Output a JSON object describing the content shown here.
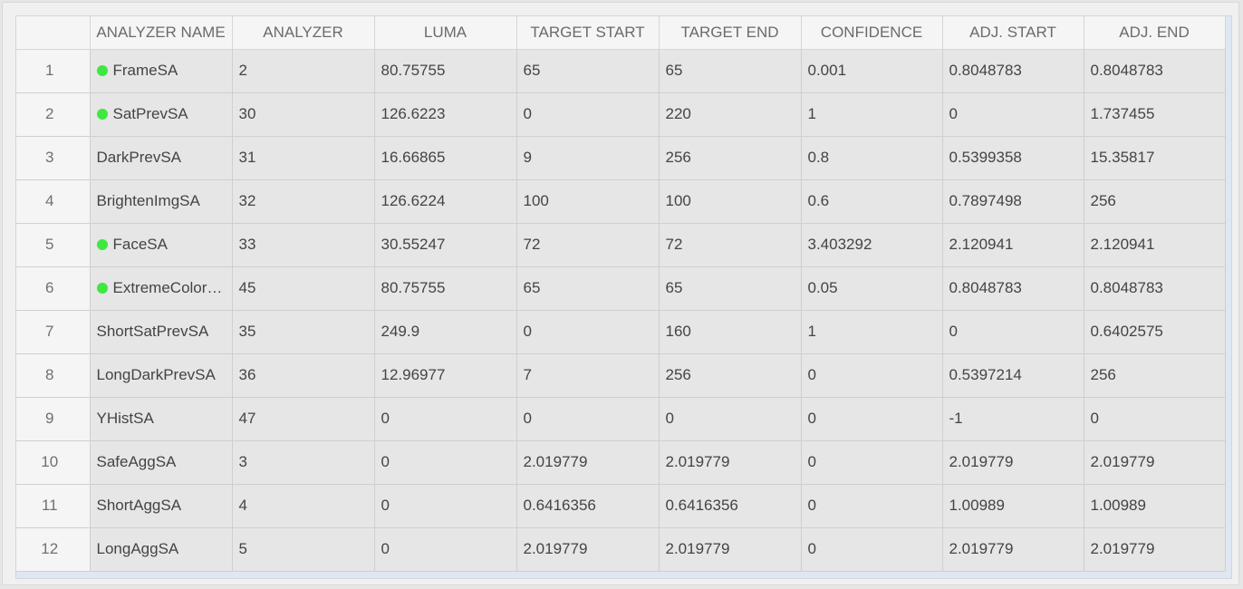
{
  "columns": [
    {
      "key": "rownum",
      "label": ""
    },
    {
      "key": "analyzer_name",
      "label": "ANALYZER NAME"
    },
    {
      "key": "analyzer",
      "label": "ANALYZER"
    },
    {
      "key": "luma",
      "label": "LUMA"
    },
    {
      "key": "target_start",
      "label": "TARGET START"
    },
    {
      "key": "target_end",
      "label": "TARGET END"
    },
    {
      "key": "confidence",
      "label": "CONFIDENCE"
    },
    {
      "key": "adj_start",
      "label": "ADJ. START"
    },
    {
      "key": "adj_end",
      "label": "ADJ. END"
    }
  ],
  "status_color": "#3ee83e",
  "rows": [
    {
      "rownum": "1",
      "active": true,
      "analyzer_name": "FrameSA",
      "analyzer": "2",
      "luma": "80.75755",
      "target_start": "65",
      "target_end": "65",
      "confidence": "0.001",
      "adj_start": "0.8048783",
      "adj_end": "0.8048783"
    },
    {
      "rownum": "2",
      "active": true,
      "analyzer_name": "SatPrevSA",
      "analyzer": "30",
      "luma": "126.6223",
      "target_start": "0",
      "target_end": "220",
      "confidence": "1",
      "adj_start": "0",
      "adj_end": "1.737455"
    },
    {
      "rownum": "3",
      "active": false,
      "analyzer_name": "DarkPrevSA",
      "analyzer": "31",
      "luma": "16.66865",
      "target_start": "9",
      "target_end": "256",
      "confidence": "0.8",
      "adj_start": "0.5399358",
      "adj_end": "15.35817"
    },
    {
      "rownum": "4",
      "active": false,
      "analyzer_name": "BrightenImgSA",
      "analyzer": "32",
      "luma": "126.6224",
      "target_start": "100",
      "target_end": "100",
      "confidence": "0.6",
      "adj_start": "0.7897498",
      "adj_end": "256"
    },
    {
      "rownum": "5",
      "active": true,
      "analyzer_name": "FaceSA",
      "analyzer": "33",
      "luma": "30.55247",
      "target_start": "72",
      "target_end": "72",
      "confidence": "3.403292",
      "adj_start": "2.120941",
      "adj_end": "2.120941"
    },
    {
      "rownum": "6",
      "active": true,
      "analyzer_name": "ExtremeColor…",
      "analyzer": "45",
      "luma": "80.75755",
      "target_start": "65",
      "target_end": "65",
      "confidence": "0.05",
      "adj_start": "0.8048783",
      "adj_end": "0.8048783"
    },
    {
      "rownum": "7",
      "active": false,
      "analyzer_name": "ShortSatPrevSA",
      "analyzer": "35",
      "luma": "249.9",
      "target_start": "0",
      "target_end": "160",
      "confidence": "1",
      "adj_start": "0",
      "adj_end": "0.6402575"
    },
    {
      "rownum": "8",
      "active": false,
      "analyzer_name": "LongDarkPrevSA",
      "analyzer": "36",
      "luma": "12.96977",
      "target_start": "7",
      "target_end": "256",
      "confidence": "0",
      "adj_start": "0.5397214",
      "adj_end": "256"
    },
    {
      "rownum": "9",
      "active": false,
      "analyzer_name": "YHistSA",
      "analyzer": "47",
      "luma": "0",
      "target_start": "0",
      "target_end": "0",
      "confidence": "0",
      "adj_start": "-1",
      "adj_end": "0"
    },
    {
      "rownum": "10",
      "active": false,
      "analyzer_name": "SafeAggSA",
      "analyzer": "3",
      "luma": "0",
      "target_start": "2.019779",
      "target_end": "2.019779",
      "confidence": "0",
      "adj_start": "2.019779",
      "adj_end": "2.019779"
    },
    {
      "rownum": "11",
      "active": false,
      "analyzer_name": "ShortAggSA",
      "analyzer": "4",
      "luma": "0",
      "target_start": "0.6416356",
      "target_end": "0.6416356",
      "confidence": "0",
      "adj_start": "1.00989",
      "adj_end": "1.00989"
    },
    {
      "rownum": "12",
      "active": false,
      "analyzer_name": "LongAggSA",
      "analyzer": "5",
      "luma": "0",
      "target_start": "2.019779",
      "target_end": "2.019779",
      "confidence": "0",
      "adj_start": "2.019779",
      "adj_end": "2.019779"
    }
  ]
}
